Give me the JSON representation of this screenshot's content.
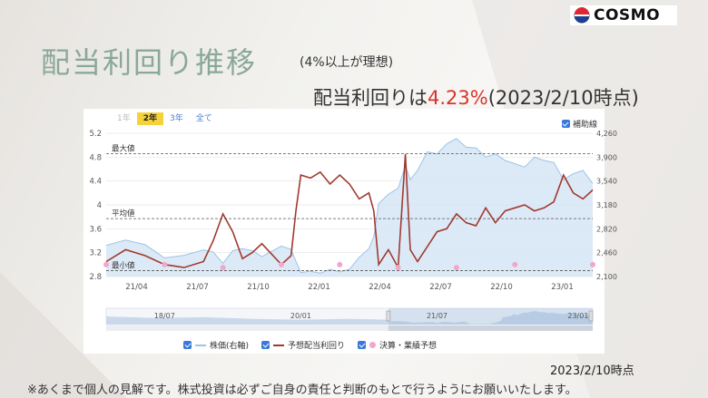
{
  "brand": {
    "logo_text": "COSMO"
  },
  "header": {
    "title": "配当利回り推移",
    "subtitle": "(4%以上が理想)",
    "yield_prefix": "配当利回りは",
    "yield_value": "4.23%",
    "yield_suffix": "(2023/2/10時点)"
  },
  "chart_controls": {
    "tabs": [
      {
        "label": "1年",
        "state": "disabled"
      },
      {
        "label": "2年",
        "state": "active"
      },
      {
        "label": "3年",
        "state": "normal"
      },
      {
        "label": "全て",
        "state": "normal"
      }
    ],
    "aux_lines_label": "補助線"
  },
  "colors": {
    "yield_line": "#a03a30",
    "price_line": "#9ec3e6",
    "price_fill": "#d6e6f6",
    "earnings_dot": "#f2a6cc",
    "checkbox": "#3b78d8",
    "accent_red": "#d9342b",
    "title_green": "#8aa89a"
  },
  "chart_data": {
    "type": "line",
    "x_tick_labels": [
      "21/04",
      "21/07",
      "21/10",
      "22/01",
      "22/04",
      "22/07",
      "22/10",
      "23/01"
    ],
    "left_axis": {
      "min": 2.8,
      "max": 5.2,
      "ticks": [
        "5.2",
        "4.8",
        "4.4",
        "4",
        "3.6",
        "3.2",
        "2.8"
      ]
    },
    "right_axis": {
      "min": 2100,
      "max": 4260,
      "ticks": [
        "4,260",
        "3,900",
        "3,540",
        "3,180",
        "2,820",
        "2,460",
        "2,100"
      ]
    },
    "reference_lines": [
      {
        "label": "最大値",
        "value": 4.86
      },
      {
        "label": "平均値",
        "value": 3.77
      },
      {
        "label": "最小値",
        "value": 2.9
      }
    ],
    "series": [
      {
        "name": "予想配当利回り",
        "axis": "left",
        "x": [
          0.0,
          0.04,
          0.08,
          0.12,
          0.16,
          0.2,
          0.22,
          0.24,
          0.26,
          0.28,
          0.3,
          0.32,
          0.36,
          0.38,
          0.39,
          0.4,
          0.42,
          0.44,
          0.46,
          0.48,
          0.5,
          0.52,
          0.54,
          0.55,
          0.56,
          0.58,
          0.6,
          0.615,
          0.625,
          0.64,
          0.66,
          0.68,
          0.7,
          0.72,
          0.74,
          0.76,
          0.78,
          0.8,
          0.82,
          0.84,
          0.86,
          0.88,
          0.9,
          0.92,
          0.94,
          0.96,
          0.98,
          1.0
        ],
        "values": [
          3.05,
          3.25,
          3.15,
          3.0,
          2.95,
          3.05,
          3.4,
          3.85,
          3.55,
          3.1,
          3.2,
          3.35,
          3.0,
          3.15,
          3.9,
          4.5,
          4.45,
          4.55,
          4.35,
          4.5,
          4.35,
          4.1,
          4.2,
          3.9,
          3.0,
          3.25,
          2.95,
          4.85,
          3.25,
          3.05,
          3.3,
          3.55,
          3.6,
          3.85,
          3.7,
          3.65,
          3.95,
          3.7,
          3.9,
          3.95,
          4.0,
          3.9,
          3.95,
          4.05,
          4.5,
          4.2,
          4.1,
          4.25
        ]
      },
      {
        "name": "株価(右軸)",
        "axis": "right",
        "x": [
          0.0,
          0.04,
          0.08,
          0.12,
          0.16,
          0.2,
          0.22,
          0.24,
          0.26,
          0.28,
          0.3,
          0.32,
          0.36,
          0.38,
          0.39,
          0.4,
          0.42,
          0.44,
          0.46,
          0.48,
          0.5,
          0.52,
          0.54,
          0.55,
          0.56,
          0.58,
          0.6,
          0.615,
          0.625,
          0.64,
          0.66,
          0.68,
          0.7,
          0.72,
          0.74,
          0.76,
          0.78,
          0.8,
          0.82,
          0.84,
          0.86,
          0.88,
          0.9,
          0.92,
          0.94,
          0.96,
          0.98,
          1.0
        ],
        "values": [
          2570,
          2650,
          2580,
          2380,
          2420,
          2500,
          2470,
          2300,
          2490,
          2520,
          2490,
          2400,
          2560,
          2510,
          2330,
          2160,
          2180,
          2150,
          2210,
          2170,
          2210,
          2390,
          2520,
          2700,
          3200,
          3340,
          3430,
          3770,
          3560,
          3700,
          3980,
          3950,
          4100,
          4180,
          4050,
          4040,
          3900,
          3950,
          3850,
          3800,
          3750,
          3900,
          3850,
          3820,
          3560,
          3650,
          3700,
          3500
        ]
      }
    ],
    "earnings_marks": [
      {
        "x": 0.0,
        "value": 3.0
      },
      {
        "x": 0.12,
        "value": 3.0
      },
      {
        "x": 0.24,
        "value": 2.95
      },
      {
        "x": 0.36,
        "value": 3.0
      },
      {
        "x": 0.48,
        "value": 3.0
      },
      {
        "x": 0.6,
        "value": 2.95
      },
      {
        "x": 0.72,
        "value": 2.95
      },
      {
        "x": 0.84,
        "value": 3.0
      },
      {
        "x": 1.0,
        "value": 3.0
      }
    ],
    "navigator": {
      "tick_labels": [
        "18/07",
        "20/01",
        "21/07",
        "23/01"
      ]
    },
    "legend": [
      {
        "label": "株価(右軸)",
        "kind": "line",
        "color": "#9ec3e6"
      },
      {
        "label": "予想配当利回り",
        "kind": "line",
        "color": "#a03a30"
      },
      {
        "label": "決算・業績予想",
        "kind": "dot",
        "color": "#f2a6cc"
      }
    ]
  },
  "footer": {
    "timestamp": "2023/2/10時点",
    "disclaimer": "※あくまで個人の見解です。株式投資は必ずご自身の責任と判断のもとで行うようにお願いいたします。"
  }
}
